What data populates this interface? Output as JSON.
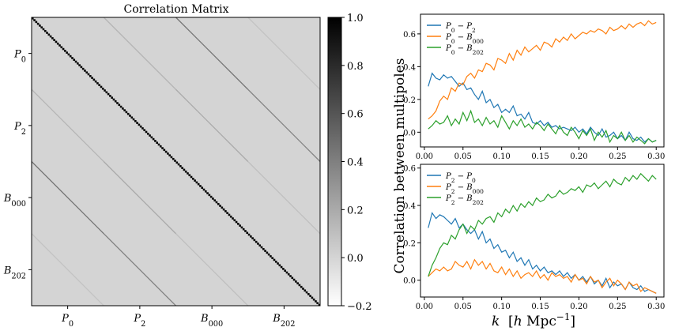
{
  "chart_data": [
    {
      "type": "heatmap",
      "title": "Correlation Matrix",
      "x_ticks": [
        "P0",
        "P2",
        "B000",
        "B202"
      ],
      "y_ticks": [
        "P0",
        "P2",
        "B000",
        "B202"
      ],
      "colorbar": {
        "min": -0.2,
        "max": 1.0,
        "ticks": [
          "1.0",
          "0.8",
          "0.6",
          "0.4",
          "0.2",
          "0.0",
          "−0.2"
        ]
      },
      "colormap": [
        "#ffffff",
        "#000000"
      ],
      "blocks": 4,
      "bins_per_block": 40,
      "background_value": 0.0,
      "diagonal_value": 1.0,
      "off_diagonals": [
        {
          "pair": [
            "P0",
            "P2"
          ],
          "value": 0.15
        },
        {
          "pair": [
            "P0",
            "B000"
          ],
          "value": 0.45
        },
        {
          "pair": [
            "P0",
            "B202"
          ],
          "value": 0.08
        },
        {
          "pair": [
            "P2",
            "B000"
          ],
          "value": 0.2
        },
        {
          "pair": [
            "P2",
            "B202"
          ],
          "value": 0.38
        },
        {
          "pair": [
            "B000",
            "B202"
          ],
          "value": 0.1
        }
      ]
    },
    {
      "type": "line",
      "xlabel": "",
      "ylabel": "",
      "xlim": [
        -0.005,
        0.31
      ],
      "ylim": [
        -0.09,
        0.72
      ],
      "yticks": [
        "0.0",
        "0.2",
        "0.4",
        "0.6"
      ],
      "xticks": [
        "0.00",
        "0.05",
        "0.10",
        "0.15",
        "0.20",
        "0.25",
        "0.30"
      ],
      "legend_position": "top-left",
      "legend": [
        "P0 − P2",
        "P0 − B000",
        "P0 − B202"
      ],
      "colors": [
        "#1f77b4",
        "#ff7f0e",
        "#2ca02c"
      ],
      "series": [
        {
          "name": "P0 − P2",
          "x": [
            0.005,
            0.01,
            0.015,
            0.02,
            0.025,
            0.03,
            0.035,
            0.04,
            0.045,
            0.05,
            0.055,
            0.06,
            0.065,
            0.07,
            0.075,
            0.08,
            0.085,
            0.09,
            0.095,
            0.1,
            0.105,
            0.11,
            0.115,
            0.12,
            0.125,
            0.13,
            0.135,
            0.14,
            0.145,
            0.15,
            0.155,
            0.16,
            0.165,
            0.17,
            0.175,
            0.18,
            0.185,
            0.19,
            0.195,
            0.2,
            0.205,
            0.21,
            0.215,
            0.22,
            0.225,
            0.23,
            0.235,
            0.24,
            0.245,
            0.25,
            0.255,
            0.26,
            0.265,
            0.27,
            0.275,
            0.28,
            0.285,
            0.29,
            0.295,
            0.3
          ],
          "values": [
            0.28,
            0.36,
            0.33,
            0.32,
            0.35,
            0.33,
            0.34,
            0.31,
            0.28,
            0.3,
            0.26,
            0.27,
            0.23,
            0.2,
            0.25,
            0.18,
            0.2,
            0.15,
            0.17,
            0.12,
            0.14,
            0.12,
            0.16,
            0.1,
            0.11,
            0.08,
            0.12,
            0.06,
            0.05,
            0.07,
            0.04,
            0.06,
            0.03,
            0.04,
            0.02,
            0.03,
            0.02,
            0.01,
            0.03,
            0.0,
            0.02,
            -0.01,
            0.03,
            0.0,
            -0.02,
            0.02,
            -0.03,
            -0.02,
            0.0,
            -0.04,
            -0.02,
            -0.05,
            0.0,
            -0.04,
            -0.05,
            -0.03,
            -0.06,
            -0.04,
            -0.06,
            -0.05
          ]
        },
        {
          "name": "P0 − B000",
          "x": [
            0.005,
            0.01,
            0.015,
            0.02,
            0.025,
            0.03,
            0.035,
            0.04,
            0.045,
            0.05,
            0.055,
            0.06,
            0.065,
            0.07,
            0.075,
            0.08,
            0.085,
            0.09,
            0.095,
            0.1,
            0.105,
            0.11,
            0.115,
            0.12,
            0.125,
            0.13,
            0.135,
            0.14,
            0.145,
            0.15,
            0.155,
            0.16,
            0.165,
            0.17,
            0.175,
            0.18,
            0.185,
            0.19,
            0.195,
            0.2,
            0.205,
            0.21,
            0.215,
            0.22,
            0.225,
            0.23,
            0.235,
            0.24,
            0.245,
            0.25,
            0.255,
            0.26,
            0.265,
            0.27,
            0.275,
            0.28,
            0.285,
            0.29,
            0.295,
            0.3
          ],
          "values": [
            0.08,
            0.1,
            0.13,
            0.19,
            0.22,
            0.2,
            0.27,
            0.25,
            0.3,
            0.29,
            0.34,
            0.36,
            0.33,
            0.38,
            0.37,
            0.42,
            0.41,
            0.38,
            0.45,
            0.44,
            0.42,
            0.48,
            0.44,
            0.5,
            0.47,
            0.52,
            0.49,
            0.51,
            0.53,
            0.5,
            0.55,
            0.54,
            0.52,
            0.57,
            0.55,
            0.58,
            0.56,
            0.6,
            0.57,
            0.59,
            0.61,
            0.6,
            0.62,
            0.61,
            0.63,
            0.62,
            0.6,
            0.64,
            0.62,
            0.63,
            0.65,
            0.63,
            0.66,
            0.64,
            0.66,
            0.67,
            0.65,
            0.68,
            0.66,
            0.67
          ]
        },
        {
          "name": "P0 − B202",
          "x": [
            0.005,
            0.01,
            0.015,
            0.02,
            0.025,
            0.03,
            0.035,
            0.04,
            0.045,
            0.05,
            0.055,
            0.06,
            0.065,
            0.07,
            0.075,
            0.08,
            0.085,
            0.09,
            0.095,
            0.1,
            0.105,
            0.11,
            0.115,
            0.12,
            0.125,
            0.13,
            0.135,
            0.14,
            0.145,
            0.15,
            0.155,
            0.16,
            0.165,
            0.17,
            0.175,
            0.18,
            0.185,
            0.19,
            0.195,
            0.2,
            0.205,
            0.21,
            0.215,
            0.22,
            0.225,
            0.23,
            0.235,
            0.24,
            0.245,
            0.25,
            0.255,
            0.26,
            0.265,
            0.27,
            0.275,
            0.28,
            0.285,
            0.29,
            0.295,
            0.3
          ],
          "values": [
            0.02,
            0.04,
            0.07,
            0.05,
            0.06,
            0.1,
            0.04,
            0.08,
            0.05,
            0.12,
            0.07,
            0.13,
            0.06,
            0.08,
            0.04,
            0.09,
            0.05,
            0.07,
            0.03,
            0.1,
            0.06,
            0.02,
            0.07,
            0.04,
            0.08,
            0.03,
            0.05,
            0.02,
            0.06,
            0.04,
            0.01,
            0.05,
            0.02,
            -0.01,
            0.04,
            0.0,
            -0.02,
            0.03,
            0.0,
            -0.04,
            0.01,
            -0.02,
            0.02,
            -0.05,
            0.0,
            -0.03,
            0.01,
            -0.06,
            -0.02,
            -0.04,
            0.0,
            -0.05,
            -0.02,
            -0.06,
            -0.03,
            -0.05,
            -0.07,
            -0.04,
            -0.06,
            -0.05
          ]
        }
      ]
    },
    {
      "type": "line",
      "xlabel": "k  [h Mpc⁻¹]",
      "ylabel": "",
      "xlim": [
        -0.005,
        0.31
      ],
      "ylim": [
        -0.09,
        0.62
      ],
      "yticks": [
        "0.0",
        "0.2",
        "0.4",
        "0.6"
      ],
      "xticks": [
        "0.00",
        "0.05",
        "0.10",
        "0.15",
        "0.20",
        "0.25",
        "0.30"
      ],
      "legend_position": "top-left",
      "legend": [
        "P2 − P0",
        "P2 − B000",
        "P2 − B202"
      ],
      "colors": [
        "#1f77b4",
        "#ff7f0e",
        "#2ca02c"
      ],
      "series": [
        {
          "name": "P2 − P0",
          "x": [
            0.005,
            0.01,
            0.015,
            0.02,
            0.025,
            0.03,
            0.035,
            0.04,
            0.045,
            0.05,
            0.055,
            0.06,
            0.065,
            0.07,
            0.075,
            0.08,
            0.085,
            0.09,
            0.095,
            0.1,
            0.105,
            0.11,
            0.115,
            0.12,
            0.125,
            0.13,
            0.135,
            0.14,
            0.145,
            0.15,
            0.155,
            0.16,
            0.165,
            0.17,
            0.175,
            0.18,
            0.185,
            0.19,
            0.195,
            0.2,
            0.205,
            0.21,
            0.215,
            0.22,
            0.225,
            0.23,
            0.235,
            0.24,
            0.245,
            0.25,
            0.255,
            0.26,
            0.265,
            0.27,
            0.275,
            0.28,
            0.285,
            0.29,
            0.295,
            0.3
          ],
          "values": [
            0.28,
            0.36,
            0.33,
            0.35,
            0.34,
            0.32,
            0.3,
            0.33,
            0.28,
            0.3,
            0.27,
            0.25,
            0.27,
            0.22,
            0.26,
            0.2,
            0.22,
            0.17,
            0.19,
            0.15,
            0.16,
            0.12,
            0.15,
            0.1,
            0.12,
            0.08,
            0.11,
            0.06,
            0.08,
            0.05,
            0.07,
            0.04,
            0.05,
            0.03,
            0.05,
            0.02,
            0.04,
            0.01,
            0.03,
            0.0,
            0.02,
            -0.01,
            0.02,
            -0.02,
            0.0,
            -0.03,
            0.01,
            -0.04,
            -0.01,
            -0.03,
            -0.02,
            -0.05,
            -0.01,
            -0.04,
            -0.05,
            -0.03,
            -0.06,
            -0.05,
            -0.06,
            -0.07
          ]
        },
        {
          "name": "P2 − B000",
          "x": [
            0.005,
            0.01,
            0.015,
            0.02,
            0.025,
            0.03,
            0.035,
            0.04,
            0.045,
            0.05,
            0.055,
            0.06,
            0.065,
            0.07,
            0.075,
            0.08,
            0.085,
            0.09,
            0.095,
            0.1,
            0.105,
            0.11,
            0.115,
            0.12,
            0.125,
            0.13,
            0.135,
            0.14,
            0.145,
            0.15,
            0.155,
            0.16,
            0.165,
            0.17,
            0.175,
            0.18,
            0.185,
            0.19,
            0.195,
            0.2,
            0.205,
            0.21,
            0.215,
            0.22,
            0.225,
            0.23,
            0.235,
            0.24,
            0.245,
            0.25,
            0.255,
            0.26,
            0.265,
            0.27,
            0.275,
            0.28,
            0.285,
            0.29,
            0.295,
            0.3
          ],
          "values": [
            0.02,
            0.04,
            0.06,
            0.05,
            0.07,
            0.05,
            0.06,
            0.1,
            0.08,
            0.07,
            0.1,
            0.06,
            0.11,
            0.08,
            0.1,
            0.06,
            0.09,
            0.05,
            0.04,
            0.07,
            0.03,
            0.06,
            0.02,
            0.05,
            0.01,
            0.03,
            0.04,
            0.02,
            0.05,
            0.01,
            0.03,
            0.0,
            0.04,
            0.02,
            0.03,
            0.01,
            0.02,
            -0.01,
            0.03,
            0.0,
            0.01,
            -0.02,
            0.02,
            -0.01,
            0.0,
            -0.04,
            -0.01,
            0.01,
            -0.03,
            0.0,
            -0.02,
            -0.05,
            -0.01,
            -0.03,
            -0.02,
            -0.06,
            -0.04,
            -0.05,
            -0.06,
            -0.07
          ]
        },
        {
          "name": "P2 − B202",
          "x": [
            0.005,
            0.01,
            0.015,
            0.02,
            0.025,
            0.03,
            0.035,
            0.04,
            0.045,
            0.05,
            0.055,
            0.06,
            0.065,
            0.07,
            0.075,
            0.08,
            0.085,
            0.09,
            0.095,
            0.1,
            0.105,
            0.11,
            0.115,
            0.12,
            0.125,
            0.13,
            0.135,
            0.14,
            0.145,
            0.15,
            0.155,
            0.16,
            0.165,
            0.17,
            0.175,
            0.18,
            0.185,
            0.19,
            0.195,
            0.2,
            0.205,
            0.21,
            0.215,
            0.22,
            0.225,
            0.23,
            0.235,
            0.24,
            0.245,
            0.25,
            0.255,
            0.26,
            0.265,
            0.27,
            0.275,
            0.28,
            0.285,
            0.29,
            0.295,
            0.3
          ],
          "values": [
            0.02,
            0.08,
            0.12,
            0.17,
            0.2,
            0.19,
            0.24,
            0.22,
            0.27,
            0.3,
            0.25,
            0.29,
            0.27,
            0.32,
            0.3,
            0.33,
            0.34,
            0.31,
            0.36,
            0.34,
            0.38,
            0.36,
            0.4,
            0.37,
            0.41,
            0.39,
            0.42,
            0.4,
            0.44,
            0.42,
            0.43,
            0.46,
            0.44,
            0.45,
            0.48,
            0.46,
            0.47,
            0.49,
            0.48,
            0.5,
            0.47,
            0.51,
            0.5,
            0.52,
            0.49,
            0.51,
            0.53,
            0.5,
            0.54,
            0.52,
            0.51,
            0.55,
            0.53,
            0.56,
            0.54,
            0.57,
            0.55,
            0.53,
            0.56,
            0.54
          ]
        }
      ]
    }
  ],
  "shared_ylabel": "Correlation between multipoles"
}
